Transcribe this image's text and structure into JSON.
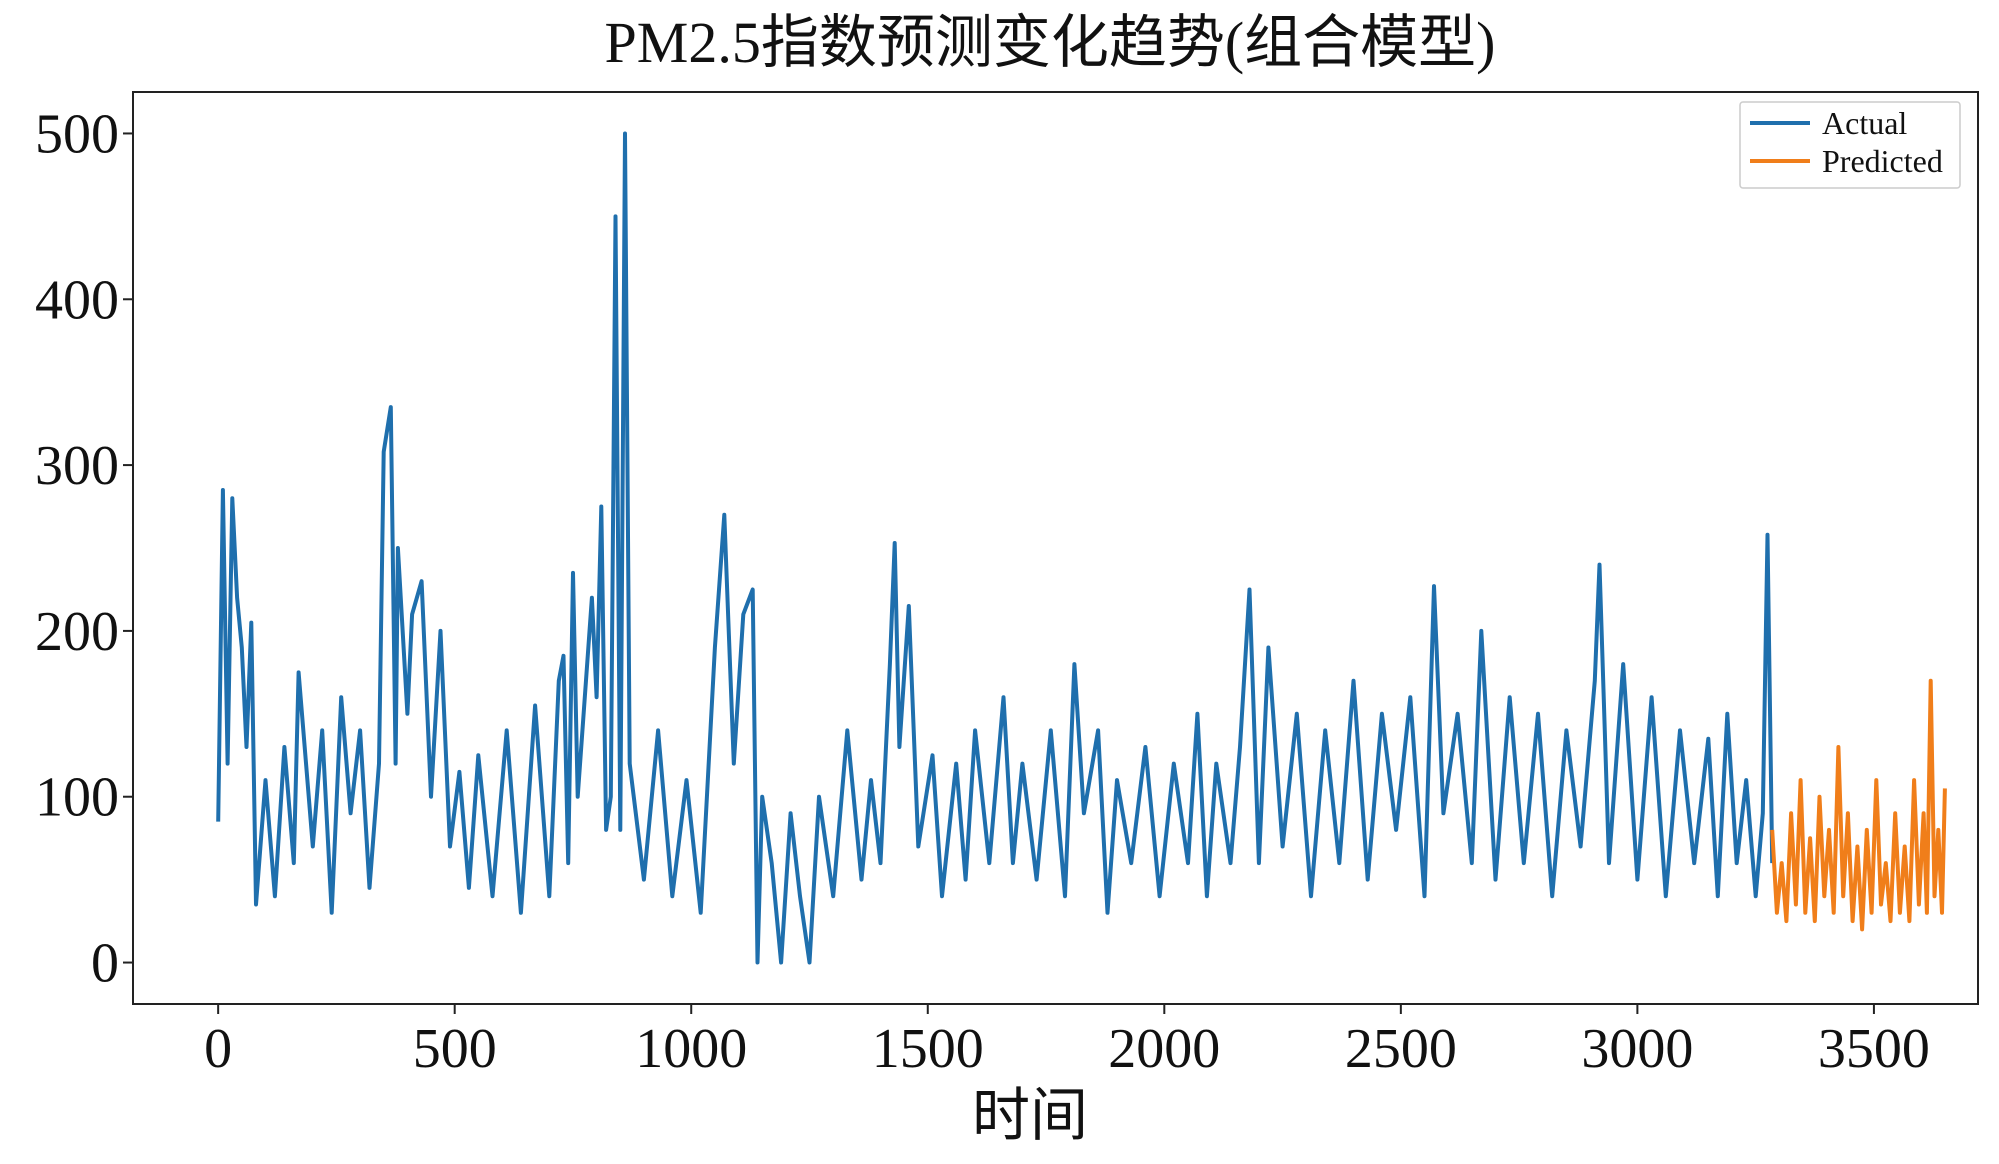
{
  "chart_data": {
    "type": "line",
    "title": "PM2.5指数预测变化趋势(组合模型)",
    "xlabel": "时间",
    "ylabel": "",
    "xlim": [
      -180,
      3720
    ],
    "ylim": [
      -25,
      525
    ],
    "xticks": [
      0,
      500,
      1000,
      1500,
      2000,
      2500,
      3000,
      3500
    ],
    "xtick_labels": [
      "0",
      "500",
      "1000",
      "1500",
      "2000",
      "2500",
      "3000",
      "3500"
    ],
    "yticks": [
      0,
      100,
      200,
      300,
      400,
      500
    ],
    "ytick_labels": [
      "0",
      "100",
      "200",
      "300",
      "400",
      "500"
    ],
    "grid": false,
    "legend_position": "top-right",
    "series": [
      {
        "name": "Actual",
        "color": "#1f6fad",
        "x_range": [
          0,
          3285
        ],
        "points": [
          [
            0,
            85
          ],
          [
            10,
            285
          ],
          [
            20,
            120
          ],
          [
            30,
            280
          ],
          [
            40,
            220
          ],
          [
            50,
            190
          ],
          [
            60,
            130
          ],
          [
            70,
            205
          ],
          [
            80,
            35
          ],
          [
            100,
            110
          ],
          [
            120,
            40
          ],
          [
            140,
            130
          ],
          [
            160,
            60
          ],
          [
            170,
            175
          ],
          [
            200,
            70
          ],
          [
            220,
            140
          ],
          [
            240,
            30
          ],
          [
            260,
            160
          ],
          [
            280,
            90
          ],
          [
            300,
            140
          ],
          [
            320,
            45
          ],
          [
            340,
            120
          ],
          [
            350,
            308
          ],
          [
            365,
            335
          ],
          [
            375,
            120
          ],
          [
            380,
            250
          ],
          [
            400,
            150
          ],
          [
            410,
            210
          ],
          [
            430,
            230
          ],
          [
            450,
            100
          ],
          [
            470,
            200
          ],
          [
            490,
            70
          ],
          [
            510,
            115
          ],
          [
            530,
            45
          ],
          [
            550,
            125
          ],
          [
            580,
            40
          ],
          [
            610,
            140
          ],
          [
            640,
            30
          ],
          [
            670,
            155
          ],
          [
            700,
            40
          ],
          [
            720,
            170
          ],
          [
            730,
            185
          ],
          [
            740,
            60
          ],
          [
            750,
            235
          ],
          [
            760,
            100
          ],
          [
            790,
            220
          ],
          [
            800,
            160
          ],
          [
            810,
            275
          ],
          [
            820,
            80
          ],
          [
            830,
            100
          ],
          [
            840,
            450
          ],
          [
            850,
            80
          ],
          [
            860,
            500
          ],
          [
            870,
            120
          ],
          [
            900,
            50
          ],
          [
            930,
            140
          ],
          [
            960,
            40
          ],
          [
            990,
            110
          ],
          [
            1020,
            30
          ],
          [
            1050,
            190
          ],
          [
            1070,
            270
          ],
          [
            1090,
            120
          ],
          [
            1110,
            210
          ],
          [
            1130,
            225
          ],
          [
            1140,
            0
          ],
          [
            1150,
            100
          ],
          [
            1170,
            60
          ],
          [
            1190,
            0
          ],
          [
            1210,
            90
          ],
          [
            1230,
            40
          ],
          [
            1250,
            0
          ],
          [
            1270,
            100
          ],
          [
            1300,
            40
          ],
          [
            1330,
            140
          ],
          [
            1360,
            50
          ],
          [
            1380,
            110
          ],
          [
            1400,
            60
          ],
          [
            1420,
            180
          ],
          [
            1430,
            253
          ],
          [
            1440,
            130
          ],
          [
            1460,
            215
          ],
          [
            1480,
            70
          ],
          [
            1510,
            125
          ],
          [
            1530,
            40
          ],
          [
            1560,
            120
          ],
          [
            1580,
            50
          ],
          [
            1600,
            140
          ],
          [
            1630,
            60
          ],
          [
            1660,
            160
          ],
          [
            1680,
            60
          ],
          [
            1700,
            120
          ],
          [
            1730,
            50
          ],
          [
            1760,
            140
          ],
          [
            1790,
            40
          ],
          [
            1810,
            180
          ],
          [
            1830,
            90
          ],
          [
            1860,
            140
          ],
          [
            1880,
            30
          ],
          [
            1900,
            110
          ],
          [
            1930,
            60
          ],
          [
            1960,
            130
          ],
          [
            1990,
            40
          ],
          [
            2020,
            120
          ],
          [
            2050,
            60
          ],
          [
            2070,
            150
          ],
          [
            2090,
            40
          ],
          [
            2110,
            120
          ],
          [
            2140,
            60
          ],
          [
            2160,
            130
          ],
          [
            2180,
            225
          ],
          [
            2200,
            60
          ],
          [
            2220,
            190
          ],
          [
            2250,
            70
          ],
          [
            2280,
            150
          ],
          [
            2310,
            40
          ],
          [
            2340,
            140
          ],
          [
            2370,
            60
          ],
          [
            2400,
            170
          ],
          [
            2430,
            50
          ],
          [
            2460,
            150
          ],
          [
            2490,
            80
          ],
          [
            2520,
            160
          ],
          [
            2550,
            40
          ],
          [
            2570,
            227
          ],
          [
            2590,
            90
          ],
          [
            2620,
            150
          ],
          [
            2650,
            60
          ],
          [
            2670,
            200
          ],
          [
            2700,
            50
          ],
          [
            2730,
            160
          ],
          [
            2760,
            60
          ],
          [
            2790,
            150
          ],
          [
            2820,
            40
          ],
          [
            2850,
            140
          ],
          [
            2880,
            70
          ],
          [
            2910,
            170
          ],
          [
            2920,
            240
          ],
          [
            2940,
            60
          ],
          [
            2970,
            180
          ],
          [
            3000,
            50
          ],
          [
            3030,
            160
          ],
          [
            3060,
            40
          ],
          [
            3090,
            140
          ],
          [
            3120,
            60
          ],
          [
            3150,
            135
          ],
          [
            3170,
            40
          ],
          [
            3190,
            150
          ],
          [
            3210,
            60
          ],
          [
            3230,
            110
          ],
          [
            3250,
            40
          ],
          [
            3265,
            90
          ],
          [
            3275,
            258
          ],
          [
            3285,
            60
          ]
        ]
      },
      {
        "name": "Predicted",
        "color": "#f07e1a",
        "x_range": [
          3285,
          3650
        ],
        "points": [
          [
            3285,
            80
          ],
          [
            3295,
            30
          ],
          [
            3305,
            60
          ],
          [
            3315,
            25
          ],
          [
            3325,
            90
          ],
          [
            3335,
            35
          ],
          [
            3345,
            110
          ],
          [
            3355,
            30
          ],
          [
            3365,
            75
          ],
          [
            3375,
            25
          ],
          [
            3385,
            100
          ],
          [
            3395,
            40
          ],
          [
            3405,
            80
          ],
          [
            3415,
            30
          ],
          [
            3425,
            130
          ],
          [
            3435,
            40
          ],
          [
            3445,
            90
          ],
          [
            3455,
            25
          ],
          [
            3465,
            70
          ],
          [
            3475,
            20
          ],
          [
            3485,
            80
          ],
          [
            3495,
            30
          ],
          [
            3505,
            110
          ],
          [
            3515,
            35
          ],
          [
            3525,
            60
          ],
          [
            3535,
            25
          ],
          [
            3545,
            90
          ],
          [
            3555,
            30
          ],
          [
            3565,
            70
          ],
          [
            3575,
            25
          ],
          [
            3585,
            110
          ],
          [
            3595,
            35
          ],
          [
            3605,
            90
          ],
          [
            3612,
            30
          ],
          [
            3620,
            170
          ],
          [
            3628,
            40
          ],
          [
            3636,
            80
          ],
          [
            3644,
            30
          ],
          [
            3650,
            105
          ]
        ]
      }
    ]
  }
}
